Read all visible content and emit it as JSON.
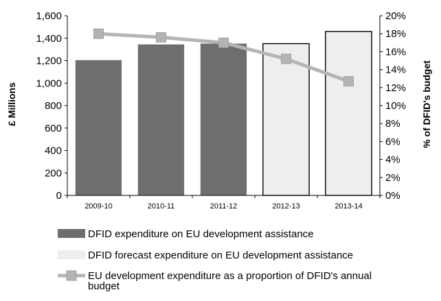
{
  "chart_data": {
    "type": "bar",
    "categories": [
      "2009-10",
      "2010-11",
      "2011-12",
      "2012-13",
      "2013-14"
    ],
    "series": [
      {
        "name": "DFID expenditure on EU development assistance",
        "kind": "bar",
        "axis": "left",
        "color": "#6e6e6e",
        "values": [
          1205,
          1345,
          1352,
          null,
          null
        ]
      },
      {
        "name": "DFID forecast expenditure on EU development assistance",
        "kind": "bar",
        "axis": "left",
        "color": "#eeeeee",
        "values": [
          null,
          null,
          null,
          1352,
          1460
        ]
      },
      {
        "name": "EU development expenditure as a proportion of DFID's annual budget",
        "name_lines": [
          "EU development expenditure as a proportion of DFID's annual",
          "budget"
        ],
        "kind": "line",
        "axis": "right",
        "color": "#b4b4b4",
        "values": [
          18.0,
          17.6,
          17.0,
          15.2,
          12.7
        ]
      }
    ],
    "ylabel": "£ Millions",
    "ylabel_right": "% of DFID's budget",
    "ylim": [
      0,
      1600
    ],
    "yticks": [
      "0",
      "200",
      "400",
      "600",
      "800",
      "1,000",
      "1,200",
      "1,400",
      "1,600"
    ],
    "ylim_right": [
      0,
      20
    ],
    "yticks_right": [
      "0%",
      "2%",
      "4%",
      "6%",
      "8%",
      "10%",
      "12%",
      "14%",
      "16%",
      "18%",
      "20%"
    ],
    "grid": false,
    "legend_position": "bottom"
  }
}
